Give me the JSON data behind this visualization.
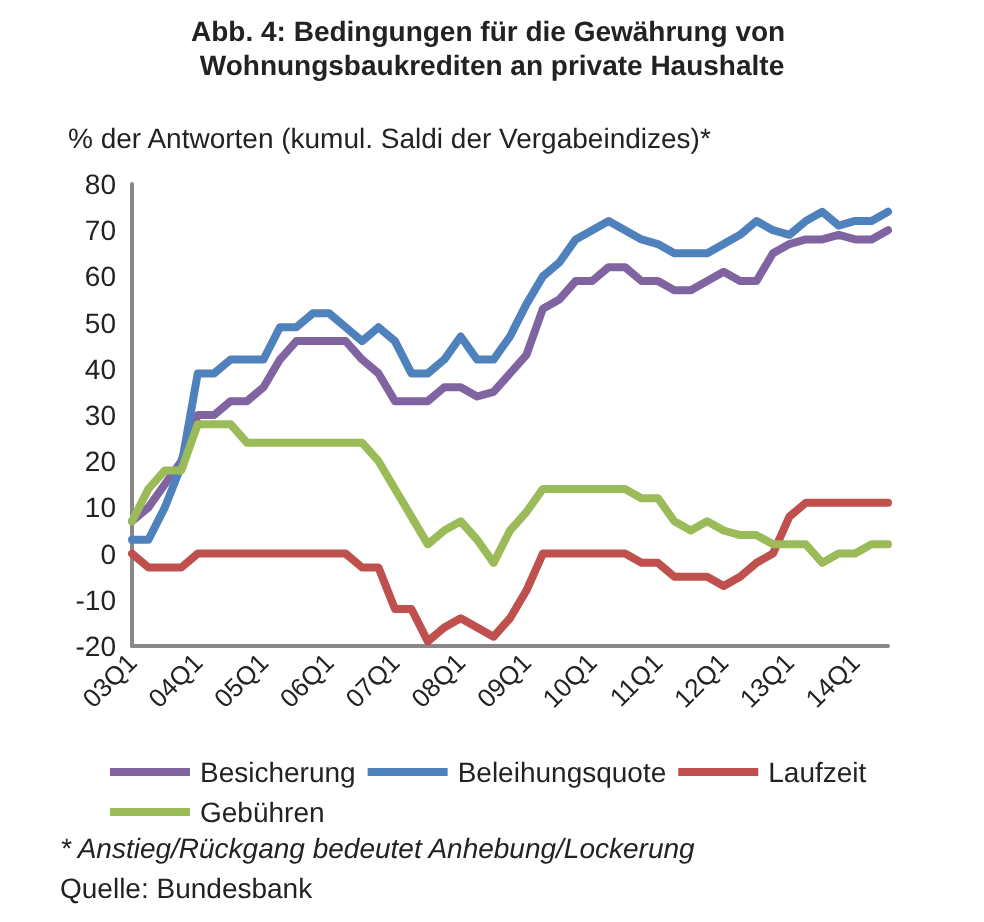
{
  "chart_data": {
    "type": "line",
    "title": "Abb. 4: Bedingungen für die Gewährung von Wohnungsbaukrediten an private Haushalte",
    "ylabel": "% der Antworten (kumul. Saldi der Vergabeindizes)*",
    "categories": [
      "03Q1",
      null,
      null,
      null,
      "04Q1",
      null,
      null,
      null,
      "05Q1",
      null,
      null,
      null,
      "06Q1",
      null,
      null,
      null,
      "07Q1",
      null,
      null,
      null,
      "08Q1",
      null,
      null,
      null,
      "09Q1",
      null,
      null,
      null,
      "10Q1",
      null,
      null,
      null,
      "11Q1",
      null,
      null,
      null,
      "12Q1",
      null,
      null,
      null,
      "13Q1",
      null,
      null,
      null,
      "14Q1",
      null,
      null
    ],
    "series": [
      {
        "name": "Besicherung",
        "color": "#8064a2",
        "values": [
          7,
          10,
          15,
          20,
          30,
          30,
          33,
          33,
          36,
          42,
          46,
          46,
          46,
          46,
          42,
          39,
          33,
          33,
          33,
          36,
          36,
          34,
          35,
          39,
          43,
          53,
          55,
          59,
          59,
          62,
          62,
          59,
          59,
          57,
          57,
          59,
          61,
          59,
          59,
          65,
          67,
          68,
          68,
          69,
          68,
          68,
          70
        ]
      },
      {
        "name": "Beleihungsquote",
        "color": "#4f81bd",
        "values": [
          3,
          3,
          10,
          19,
          39,
          39,
          42,
          42,
          42,
          49,
          49,
          52,
          52,
          49,
          46,
          49,
          46,
          39,
          39,
          42,
          47,
          42,
          42,
          47,
          54,
          60,
          63,
          68,
          70,
          72,
          70,
          68,
          67,
          65,
          65,
          65,
          67,
          69,
          72,
          70,
          69,
          72,
          74,
          71,
          72,
          72,
          74
        ]
      },
      {
        "name": "Laufzeit",
        "color": "#c0504d",
        "values": [
          0,
          -3,
          -3,
          -3,
          0,
          0,
          0,
          0,
          0,
          0,
          0,
          0,
          0,
          0,
          -3,
          -3,
          -12,
          -12,
          -19,
          -16,
          -14,
          -16,
          -18,
          -14,
          -8,
          0,
          0,
          0,
          0,
          0,
          0,
          -2,
          -2,
          -5,
          -5,
          -5,
          -7,
          -5,
          -2,
          0,
          8,
          11,
          11,
          11,
          11,
          11,
          11
        ]
      },
      {
        "name": "Gebühren",
        "color": "#9bbb59",
        "values": [
          7,
          14,
          18,
          18,
          28,
          28,
          28,
          24,
          24,
          24,
          24,
          24,
          24,
          24,
          24,
          20,
          14,
          8,
          2,
          5,
          7,
          3,
          -2,
          5,
          9,
          14,
          14,
          14,
          14,
          14,
          14,
          12,
          12,
          7,
          5,
          7,
          5,
          4,
          4,
          2,
          2,
          2,
          -2,
          0,
          0,
          2,
          2
        ]
      }
    ],
    "ylim": [
      -20,
      80
    ],
    "yticks": [
      -20,
      -10,
      0,
      10,
      20,
      30,
      40,
      50,
      60,
      70,
      80
    ],
    "grid": false,
    "legend": "bottom",
    "line_style": "solid",
    "marker": "none",
    "annotations": [
      "* Anstieg/Rückgang bedeutet Anhebung/Lockerung",
      "Quelle: Bundesbank"
    ]
  }
}
